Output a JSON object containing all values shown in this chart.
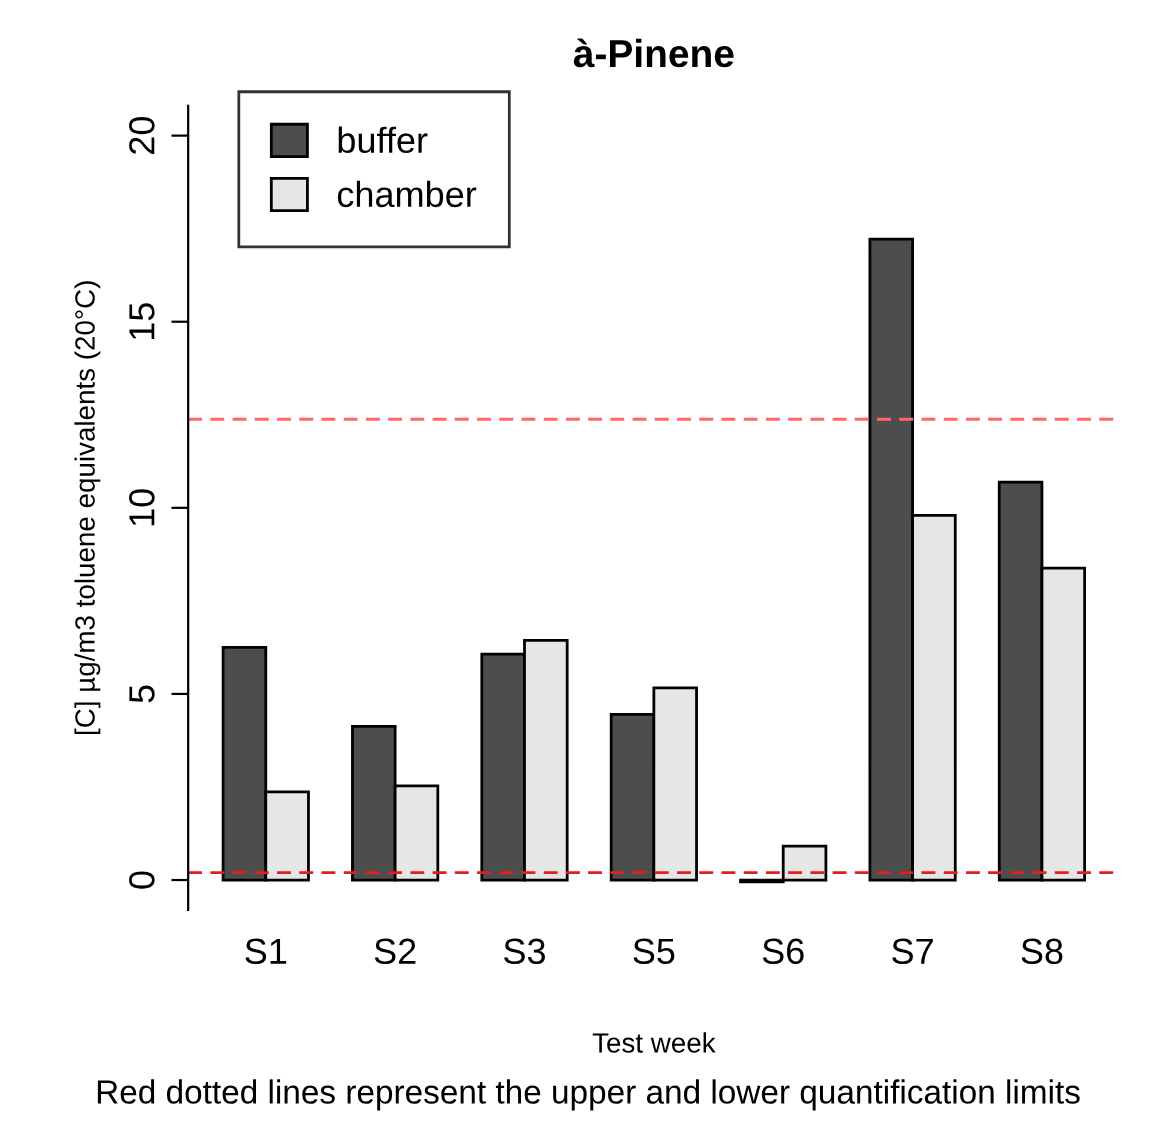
{
  "chart_data": {
    "type": "bar",
    "title": "à-Pinene",
    "xlabel": "Test week",
    "ylabel": "[C] µg/m3 toluene equivalents (20°C)",
    "annotations": [
      "Red dotted lines represent the upper and lower quantification limits"
    ],
    "categories": [
      "S1",
      "S2",
      "S3",
      "S5",
      "S6",
      "S7",
      "S8"
    ],
    "series": [
      {
        "name": "buffer",
        "color": "#4d4d4d",
        "values": [
          6.25,
          4.13,
          6.07,
          4.45,
          -0.05,
          17.22,
          10.69
        ]
      },
      {
        "name": "chamber",
        "color": "#e6e6e6",
        "values": [
          2.37,
          2.53,
          6.44,
          5.16,
          0.91,
          9.8,
          8.38
        ]
      }
    ],
    "ylim": [
      -0.8,
      20.8
    ],
    "yticks": [
      0,
      5,
      10,
      15,
      20
    ],
    "grid": false,
    "legend": "top left",
    "ref_lines": [
      {
        "axis": "y",
        "value": 12.38,
        "color": "#ff6666",
        "line_style": "dashed"
      },
      {
        "axis": "y",
        "value": 0.2,
        "color": "#e02020",
        "line_style": "dashed"
      }
    ]
  }
}
